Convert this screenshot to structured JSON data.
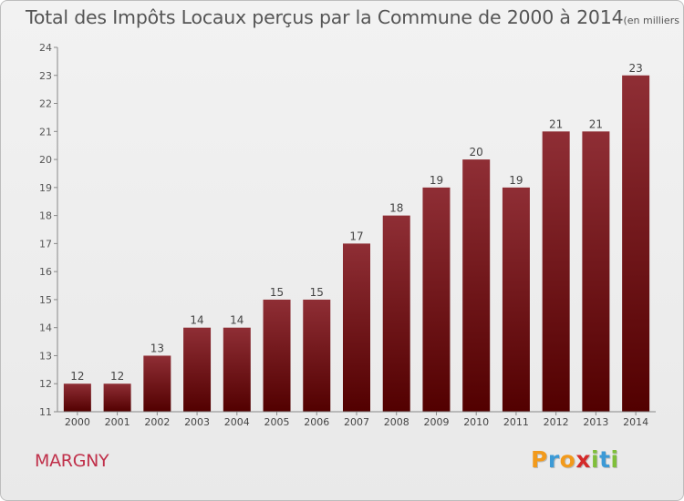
{
  "title": "Total des Impôts Locaux perçus par la Commune de 2000 à 2014",
  "unit": "(en milliers d'€)",
  "commune": "MARGNY",
  "logo": {
    "letters": [
      {
        "char": "P",
        "color": "#f29a1b"
      },
      {
        "char": "r",
        "color": "#3c9ad6"
      },
      {
        "char": "o",
        "color": "#f29a1b"
      },
      {
        "char": "x",
        "color": "#d42a2a"
      },
      {
        "char": "i",
        "color": "#7fbf3a"
      },
      {
        "char": "t",
        "color": "#3c9ad6"
      },
      {
        "char": "i",
        "color": "#7fbf3a"
      }
    ]
  },
  "chart_data": {
    "type": "bar",
    "categories": [
      "2000",
      "2001",
      "2002",
      "2003",
      "2004",
      "2005",
      "2006",
      "2007",
      "2008",
      "2009",
      "2010",
      "2011",
      "2012",
      "2013",
      "2014"
    ],
    "values": [
      12,
      12,
      13,
      14,
      14,
      15,
      15,
      17,
      18,
      19,
      20,
      19,
      21,
      21,
      23
    ],
    "ylim": [
      11,
      24
    ],
    "yticks": [
      11,
      12,
      13,
      14,
      15,
      16,
      17,
      18,
      19,
      20,
      21,
      22,
      23,
      24
    ],
    "bar_color_top": "#8f2e35",
    "bar_color_bottom": "#520000",
    "grid": false
  }
}
